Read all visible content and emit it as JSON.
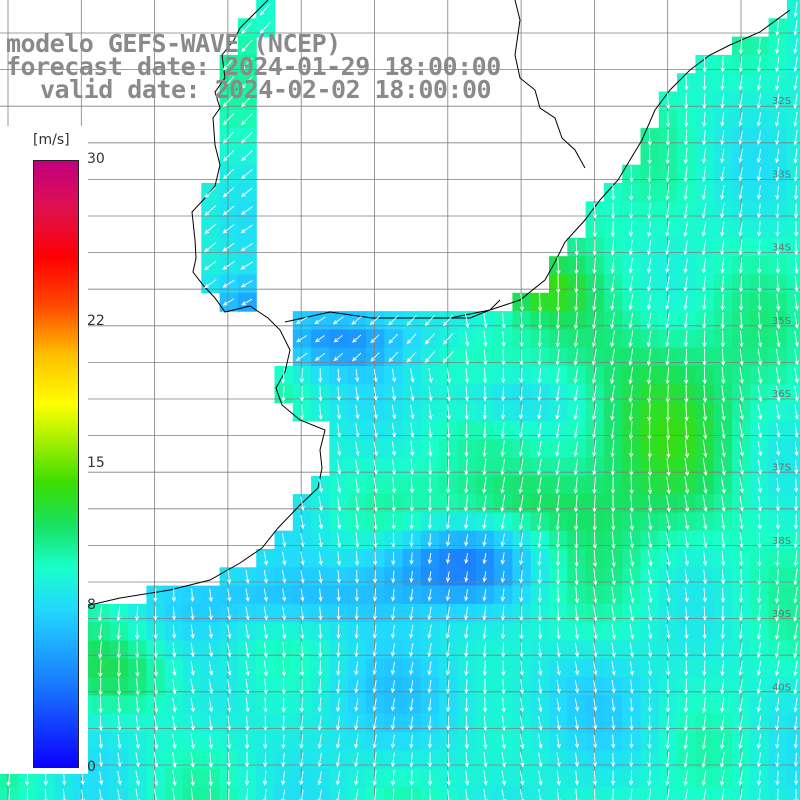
{
  "title": {
    "line1": "modelo GEFS-WAVE (NCEP)",
    "line2": "forecast date: 2024-01-29 18:00:00",
    "line3": "valid date: 2024-02-02 18:00:00"
  },
  "colorbar": {
    "unit": "[m/s]",
    "min": 0,
    "max": 30,
    "ticks": [
      {
        "value": 30,
        "label": "30"
      },
      {
        "value": 22,
        "label": "22"
      },
      {
        "value": 15,
        "label": "15"
      },
      {
        "value": 8,
        "label": "8"
      },
      {
        "value": 0,
        "label": "0"
      }
    ]
  },
  "map": {
    "latitude_labels": [
      "32S",
      "33S",
      "34S",
      "35S",
      "36S",
      "37S",
      "38S",
      "39S",
      "40S"
    ],
    "land_color": "#ffffff",
    "coastline_color": "#000000",
    "grid_color": "#7f7f7f",
    "arrow_color": "#ffffff",
    "dominant_wind_direction": "southward"
  }
}
